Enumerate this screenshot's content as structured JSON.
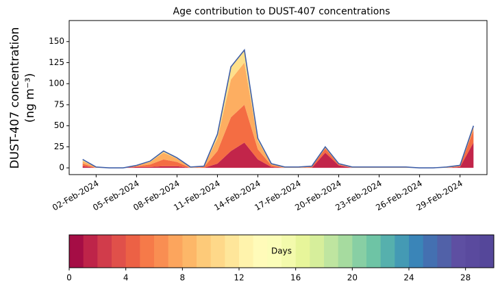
{
  "chart_data": {
    "type": "stacked_area_line",
    "title": "Age contribution to DUST-407 concentrations",
    "ylabel": [
      "DUST-407 concentration",
      "(ng m⁻³)"
    ],
    "x": [
      "2024-02-01",
      "2024-02-02",
      "2024-02-03",
      "2024-02-04",
      "2024-02-05",
      "2024-02-06",
      "2024-02-07",
      "2024-02-08",
      "2024-02-09",
      "2024-02-10",
      "2024-02-11",
      "2024-02-12",
      "2024-02-13",
      "2024-02-14",
      "2024-02-15",
      "2024-02-16",
      "2024-02-17",
      "2024-02-18",
      "2024-02-19",
      "2024-02-20",
      "2024-02-21",
      "2024-02-22",
      "2024-02-23",
      "2024-02-24",
      "2024-02-25",
      "2024-02-26",
      "2024-02-27",
      "2024-02-28",
      "2024-02-29",
      "2024-03-01"
    ],
    "line": {
      "color": "#3f5fa8",
      "values": [
        10,
        1,
        0,
        0,
        3,
        8,
        20,
        12,
        1,
        2,
        40,
        120,
        140,
        35,
        5,
        1,
        1,
        2,
        25,
        5,
        1,
        1,
        1,
        1,
        1,
        0,
        0,
        1,
        3,
        50
      ]
    },
    "areas": [
      {
        "color": "#c2254a",
        "values": [
          2,
          0,
          0,
          0,
          1,
          1,
          2,
          2,
          0,
          0,
          5,
          20,
          30,
          10,
          1,
          0,
          0,
          0,
          18,
          3,
          0,
          0,
          0,
          0,
          0,
          0,
          0,
          0,
          1,
          30
        ]
      },
      {
        "color": "#f46d43",
        "values": [
          3,
          0,
          0,
          0,
          1,
          3,
          8,
          5,
          0,
          1,
          15,
          40,
          45,
          12,
          2,
          0,
          0,
          1,
          5,
          1,
          0,
          0,
          0,
          0,
          0,
          0,
          0,
          0,
          1,
          15
        ]
      },
      {
        "color": "#fdae61",
        "values": [
          3,
          1,
          0,
          0,
          1,
          3,
          8,
          4,
          1,
          1,
          15,
          45,
          50,
          10,
          2,
          1,
          1,
          1,
          1,
          1,
          1,
          1,
          1,
          1,
          1,
          0,
          0,
          1,
          1,
          4
        ]
      },
      {
        "color": "#fee08b",
        "values": [
          1,
          0,
          0,
          0,
          0,
          1,
          2,
          1,
          0,
          0,
          5,
          15,
          15,
          3,
          0,
          0,
          0,
          0,
          1,
          0,
          0,
          0,
          0,
          0,
          0,
          0,
          0,
          0,
          0,
          1
        ]
      }
    ],
    "xlim": [
      "2024-01-31",
      "2024-03-02"
    ],
    "xticks": [
      {
        "value": "2024-02-02",
        "label": "02-Feb-2024"
      },
      {
        "value": "2024-02-05",
        "label": "05-Feb-2024"
      },
      {
        "value": "2024-02-08",
        "label": "08-Feb-2024"
      },
      {
        "value": "2024-02-11",
        "label": "11-Feb-2024"
      },
      {
        "value": "2024-02-14",
        "label": "14-Feb-2024"
      },
      {
        "value": "2024-02-17",
        "label": "17-Feb-2024"
      },
      {
        "value": "2024-02-20",
        "label": "20-Feb-2024"
      },
      {
        "value": "2024-02-23",
        "label": "23-Feb-2024"
      },
      {
        "value": "2024-02-26",
        "label": "26-Feb-2024"
      },
      {
        "value": "2024-02-29",
        "label": "29-Feb-2024"
      }
    ],
    "ylim": [
      -8,
      175
    ],
    "yticks": [
      0,
      25,
      50,
      75,
      100,
      125,
      150
    ],
    "colorbar": {
      "label": "Days",
      "lim": [
        0,
        30
      ],
      "ticks": [
        0,
        4,
        8,
        12,
        16,
        20,
        24,
        28
      ],
      "colors": [
        "#a50d45",
        "#be2449",
        "#d13c4b",
        "#e0504a",
        "#ec6145",
        "#f67a49",
        "#f98e52",
        "#fca55d",
        "#fdb768",
        "#fdca79",
        "#fed889",
        "#fee69a",
        "#fff3ac",
        "#fffbb9",
        "#fbfdb8",
        "#f3faac",
        "#e7f59a",
        "#d6ee9b",
        "#bfe5a0",
        "#a6db9f",
        "#88cfa4",
        "#6ec4a5",
        "#56b0ad",
        "#449ab4",
        "#3a85b8",
        "#4470b1",
        "#5161a8",
        "#5e4fa2",
        "#5a4a9e",
        "#55479a"
      ]
    }
  }
}
